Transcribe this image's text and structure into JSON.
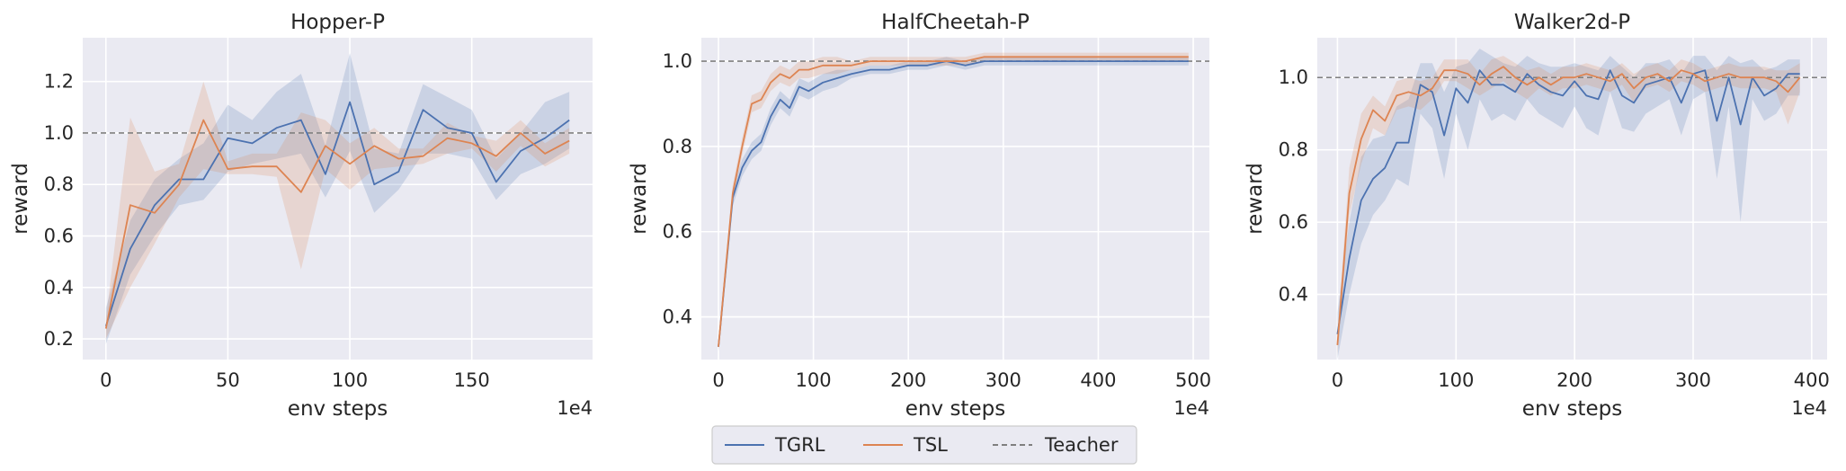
{
  "style": {
    "axes_bg": "#EAEAF2",
    "grid": "#FFFFFF",
    "series_colors": {
      "TGRL": "#4C72B0",
      "TSL": "#DD8452",
      "Teacher": "#7F7F7F"
    }
  },
  "legend": {
    "placement": "bottom-center",
    "items": [
      {
        "label": "TGRL",
        "style": "solid",
        "color": "#4C72B0"
      },
      {
        "label": "TSL",
        "style": "solid",
        "color": "#DD8452"
      },
      {
        "label": "Teacher",
        "style": "dashed",
        "color": "#7F7F7F"
      }
    ]
  },
  "chart_data": [
    {
      "type": "line",
      "title": "Hopper-P",
      "xlabel": "env steps",
      "ylabel": "reward",
      "x_multiplier": "1e4",
      "xlim": [
        -9.5,
        199.5
      ],
      "ylim": [
        0.12,
        1.37
      ],
      "xticks": [
        0,
        50,
        100,
        150
      ],
      "yticks": [
        0.2,
        0.4,
        0.6,
        0.8,
        1.0,
        1.2
      ],
      "ytick_labels": [
        "0.2",
        "0.4",
        "0.6",
        "0.8",
        "1.0",
        "1.2"
      ],
      "grid": true,
      "teacher": 1.0,
      "x": [
        0,
        10,
        20,
        30,
        40,
        50,
        60,
        70,
        80,
        90,
        100,
        110,
        120,
        130,
        140,
        150,
        160,
        170,
        180,
        190
      ],
      "series": [
        {
          "name": "TGRL",
          "values": [
            0.25,
            0.55,
            0.72,
            0.82,
            0.82,
            0.98,
            0.96,
            1.02,
            1.05,
            0.84,
            1.12,
            0.8,
            0.85,
            1.09,
            1.02,
            1.0,
            0.81,
            0.93,
            0.98,
            1.05
          ],
          "lower": [
            0.18,
            0.45,
            0.6,
            0.72,
            0.74,
            0.85,
            0.88,
            0.9,
            0.92,
            0.75,
            0.93,
            0.69,
            0.78,
            0.92,
            0.92,
            0.9,
            0.74,
            0.84,
            0.88,
            0.94
          ],
          "upper": [
            0.32,
            0.66,
            0.82,
            0.9,
            0.96,
            1.11,
            1.05,
            1.16,
            1.23,
            0.95,
            1.31,
            0.94,
            0.92,
            1.19,
            1.14,
            1.09,
            0.9,
            1.0,
            1.12,
            1.16
          ]
        },
        {
          "name": "TSL",
          "values": [
            0.24,
            0.72,
            0.69,
            0.8,
            1.05,
            0.86,
            0.87,
            0.87,
            0.77,
            0.95,
            0.88,
            0.95,
            0.9,
            0.91,
            0.98,
            0.96,
            0.91,
            1.0,
            0.92,
            0.97
          ],
          "lower": [
            0.2,
            0.4,
            0.57,
            0.75,
            0.86,
            0.84,
            0.84,
            0.83,
            0.47,
            0.86,
            0.78,
            0.86,
            0.87,
            0.88,
            0.92,
            0.94,
            0.85,
            0.95,
            0.87,
            0.92
          ],
          "upper": [
            0.28,
            1.06,
            0.85,
            0.88,
            1.2,
            0.89,
            0.92,
            0.92,
            1.08,
            1.05,
            0.96,
            1.02,
            0.94,
            0.94,
            1.04,
            0.99,
            0.97,
            1.05,
            0.96,
            1.02
          ]
        }
      ]
    },
    {
      "type": "line",
      "title": "HalfCheetah-P",
      "xlabel": "env steps",
      "ylabel": "reward",
      "x_multiplier": "1e4",
      "xlim": [
        -18,
        517
      ],
      "ylim": [
        0.3,
        1.055
      ],
      "xticks": [
        0,
        100,
        200,
        300,
        400,
        500
      ],
      "yticks": [
        0.4,
        0.6,
        0.8,
        1.0
      ],
      "ytick_labels": [
        "0.4",
        "0.6",
        "0.8",
        "1.0"
      ],
      "grid": true,
      "teacher": 1.0,
      "x": [
        0,
        15,
        25,
        35,
        45,
        55,
        65,
        75,
        85,
        95,
        110,
        125,
        140,
        160,
        180,
        200,
        220,
        240,
        260,
        280,
        300,
        320,
        340,
        360,
        380,
        400,
        420,
        440,
        460,
        480,
        495
      ],
      "series": [
        {
          "name": "TGRL",
          "values": [
            0.33,
            0.68,
            0.75,
            0.79,
            0.81,
            0.87,
            0.91,
            0.89,
            0.94,
            0.93,
            0.95,
            0.96,
            0.97,
            0.98,
            0.98,
            0.99,
            0.99,
            1.0,
            0.99,
            1.0,
            1.0,
            1.0,
            1.0,
            1.0,
            1.0,
            1.0,
            1.0,
            1.0,
            1.0,
            1.0,
            1.0
          ],
          "lower": [
            0.32,
            0.66,
            0.73,
            0.77,
            0.79,
            0.85,
            0.89,
            0.87,
            0.92,
            0.91,
            0.93,
            0.94,
            0.96,
            0.97,
            0.97,
            0.98,
            0.98,
            0.99,
            0.98,
            0.99,
            0.99,
            0.99,
            0.99,
            0.99,
            0.99,
            0.99,
            0.99,
            0.99,
            0.99,
            0.99,
            0.99
          ],
          "upper": [
            0.34,
            0.7,
            0.77,
            0.81,
            0.83,
            0.89,
            0.93,
            0.91,
            0.96,
            0.95,
            0.97,
            0.98,
            0.98,
            0.99,
            0.99,
            1.0,
            1.0,
            1.01,
            1.0,
            1.01,
            1.01,
            1.01,
            1.01,
            1.01,
            1.01,
            1.01,
            1.01,
            1.01,
            1.01,
            1.01,
            1.01
          ]
        },
        {
          "name": "TSL",
          "values": [
            0.33,
            0.69,
            0.8,
            0.9,
            0.91,
            0.95,
            0.97,
            0.96,
            0.98,
            0.98,
            0.99,
            0.99,
            0.99,
            1.0,
            1.0,
            1.0,
            1.0,
            1.0,
            1.0,
            1.01,
            1.01,
            1.01,
            1.01,
            1.01,
            1.01,
            1.01,
            1.01,
            1.01,
            1.01,
            1.01,
            1.01
          ],
          "lower": [
            0.32,
            0.67,
            0.78,
            0.88,
            0.89,
            0.93,
            0.95,
            0.94,
            0.96,
            0.96,
            0.97,
            0.97,
            0.98,
            0.99,
            0.99,
            0.99,
            0.99,
            0.99,
            0.99,
            1.0,
            1.0,
            1.0,
            1.0,
            1.0,
            1.0,
            1.0,
            1.0,
            1.0,
            1.0,
            1.0,
            1.0
          ],
          "upper": [
            0.34,
            0.71,
            0.82,
            0.92,
            0.93,
            0.97,
            0.99,
            0.98,
            1.0,
            1.0,
            1.01,
            1.01,
            1.0,
            1.01,
            1.01,
            1.01,
            1.01,
            1.01,
            1.01,
            1.02,
            1.02,
            1.02,
            1.02,
            1.02,
            1.02,
            1.02,
            1.02,
            1.02,
            1.02,
            1.02,
            1.02
          ]
        }
      ]
    },
    {
      "type": "line",
      "title": "Walker2d-P",
      "xlabel": "env steps",
      "ylabel": "reward",
      "x_multiplier": "1e4",
      "xlim": [
        -17,
        413
      ],
      "ylim": [
        0.22,
        1.11
      ],
      "xticks": [
        0,
        100,
        200,
        300,
        400
      ],
      "yticks": [
        0.4,
        0.6,
        0.8,
        1.0
      ],
      "ytick_labels": [
        "0.4",
        "0.6",
        "0.8",
        "1.0"
      ],
      "grid": true,
      "teacher": 1.0,
      "x": [
        0,
        10,
        20,
        30,
        40,
        50,
        60,
        70,
        80,
        90,
        100,
        110,
        120,
        130,
        140,
        150,
        160,
        170,
        180,
        190,
        200,
        210,
        220,
        230,
        240,
        250,
        260,
        270,
        280,
        290,
        300,
        310,
        320,
        330,
        340,
        350,
        360,
        370,
        380,
        390
      ],
      "series": [
        {
          "name": "TGRL",
          "values": [
            0.29,
            0.5,
            0.66,
            0.72,
            0.75,
            0.82,
            0.82,
            0.98,
            0.96,
            0.84,
            0.97,
            0.93,
            1.02,
            0.98,
            0.98,
            0.96,
            1.01,
            0.98,
            0.96,
            0.95,
            0.99,
            0.95,
            0.94,
            1.02,
            0.95,
            0.93,
            0.98,
            0.99,
            1.0,
            0.93,
            1.01,
            1.02,
            0.88,
            1.0,
            0.87,
            1.0,
            0.95,
            0.97,
            1.01,
            1.01
          ],
          "lower": [
            0.22,
            0.4,
            0.54,
            0.62,
            0.66,
            0.72,
            0.7,
            0.9,
            0.86,
            0.72,
            0.9,
            0.8,
            0.94,
            0.88,
            0.9,
            0.88,
            0.94,
            0.9,
            0.88,
            0.86,
            0.92,
            0.86,
            0.84,
            0.96,
            0.86,
            0.85,
            0.9,
            0.92,
            0.94,
            0.84,
            0.94,
            0.96,
            0.72,
            0.92,
            0.6,
            0.94,
            0.88,
            0.9,
            0.95,
            0.95
          ],
          "upper": [
            0.35,
            0.6,
            0.78,
            0.83,
            0.84,
            0.92,
            0.94,
            1.04,
            1.04,
            0.96,
            1.03,
            1.04,
            1.08,
            1.06,
            1.04,
            1.03,
            1.06,
            1.04,
            1.03,
            1.03,
            1.04,
            1.03,
            1.02,
            1.06,
            1.03,
            1.0,
            1.04,
            1.04,
            1.05,
            1.01,
            1.06,
            1.06,
            1.02,
            1.06,
            1.04,
            1.05,
            1.02,
            1.03,
            1.05,
            1.05
          ]
        },
        {
          "name": "TSL",
          "values": [
            0.26,
            0.68,
            0.83,
            0.91,
            0.88,
            0.95,
            0.96,
            0.95,
            0.97,
            1.02,
            1.02,
            1.01,
            0.98,
            1.01,
            1.03,
            1.0,
            0.98,
            1.0,
            0.98,
            1.0,
            1.0,
            1.01,
            1.0,
            0.99,
            1.01,
            0.97,
            1.0,
            1.01,
            0.99,
            1.02,
            1.01,
            0.99,
            1.0,
            1.01,
            1.0,
            1.0,
            1.0,
            0.99,
            0.96,
            1.0
          ],
          "lower": [
            0.23,
            0.62,
            0.76,
            0.86,
            0.84,
            0.91,
            0.92,
            0.91,
            0.94,
            0.99,
            0.99,
            0.97,
            0.95,
            0.97,
            0.99,
            0.96,
            0.94,
            0.97,
            0.95,
            0.97,
            0.97,
            0.98,
            0.97,
            0.96,
            0.98,
            0.93,
            0.97,
            0.98,
            0.96,
            0.99,
            0.98,
            0.96,
            0.97,
            0.98,
            0.97,
            0.97,
            0.97,
            0.96,
            0.87,
            0.96
          ],
          "upper": [
            0.29,
            0.75,
            0.9,
            0.95,
            0.92,
            0.99,
            1.0,
            0.99,
            1.0,
            1.05,
            1.05,
            1.05,
            1.01,
            1.05,
            1.06,
            1.04,
            1.02,
            1.03,
            1.01,
            1.03,
            1.03,
            1.04,
            1.03,
            1.02,
            1.04,
            1.01,
            1.03,
            1.04,
            1.02,
            1.05,
            1.04,
            1.02,
            1.03,
            1.04,
            1.03,
            1.03,
            1.03,
            1.02,
            1.02,
            1.04
          ]
        }
      ]
    }
  ]
}
